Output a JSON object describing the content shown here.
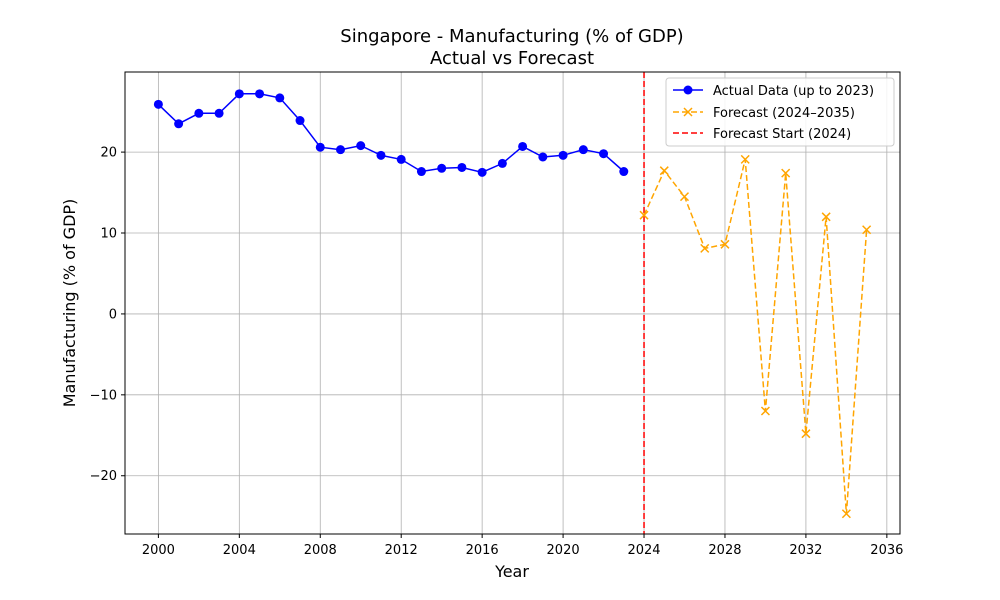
{
  "chart_data": {
    "type": "line",
    "title": "Singapore - Manufacturing (% of GDP)",
    "subtitle": "Actual vs Forecast",
    "xlabel": "Year",
    "ylabel": "Manufacturing (% of GDP)",
    "xlim": [
      1998.35,
      2036.65
    ],
    "ylim": [
      -27.2,
      29.9
    ],
    "xticks": [
      2000,
      2004,
      2008,
      2012,
      2016,
      2020,
      2024,
      2028,
      2032,
      2036
    ],
    "xtick_labels": [
      "2000",
      "2004",
      "2008",
      "2012",
      "2016",
      "2020",
      "2024",
      "2028",
      "2032",
      "2036"
    ],
    "yticks": [
      -20,
      -10,
      0,
      10,
      20
    ],
    "ytick_labels": [
      "−20",
      "−10",
      "0",
      "10",
      "20"
    ],
    "grid": true,
    "legend_position": "top-right",
    "series": [
      {
        "name": "Actual Data (up to 2023)",
        "color": "#0000ff",
        "linestyle": "solid",
        "marker": "circle",
        "x": [
          2000,
          2001,
          2002,
          2003,
          2004,
          2005,
          2006,
          2007,
          2008,
          2009,
          2010,
          2011,
          2012,
          2013,
          2014,
          2015,
          2016,
          2017,
          2018,
          2019,
          2020,
          2021,
          2022,
          2023
        ],
        "y": [
          25.9,
          23.5,
          24.8,
          24.8,
          27.2,
          27.2,
          26.7,
          23.9,
          20.6,
          20.3,
          20.8,
          19.6,
          19.1,
          17.6,
          18.0,
          18.1,
          17.5,
          18.6,
          20.7,
          19.4,
          19.6,
          20.3,
          19.8,
          17.6
        ]
      },
      {
        "name": "Forecast (2024–2035)",
        "color": "#ffa500",
        "linestyle": "dashed",
        "marker": "x",
        "x": [
          2024,
          2025,
          2026,
          2027,
          2028,
          2029,
          2030,
          2031,
          2032,
          2033,
          2034,
          2035
        ],
        "y": [
          12.2,
          17.7,
          14.5,
          8.1,
          8.6,
          19.1,
          -12.0,
          17.4,
          -14.8,
          12.0,
          -24.7,
          10.4
        ]
      }
    ],
    "vlines": [
      {
        "name": "Forecast Start (2024)",
        "x": 2024,
        "color": "#ff0000",
        "linestyle": "dashed"
      }
    ]
  }
}
